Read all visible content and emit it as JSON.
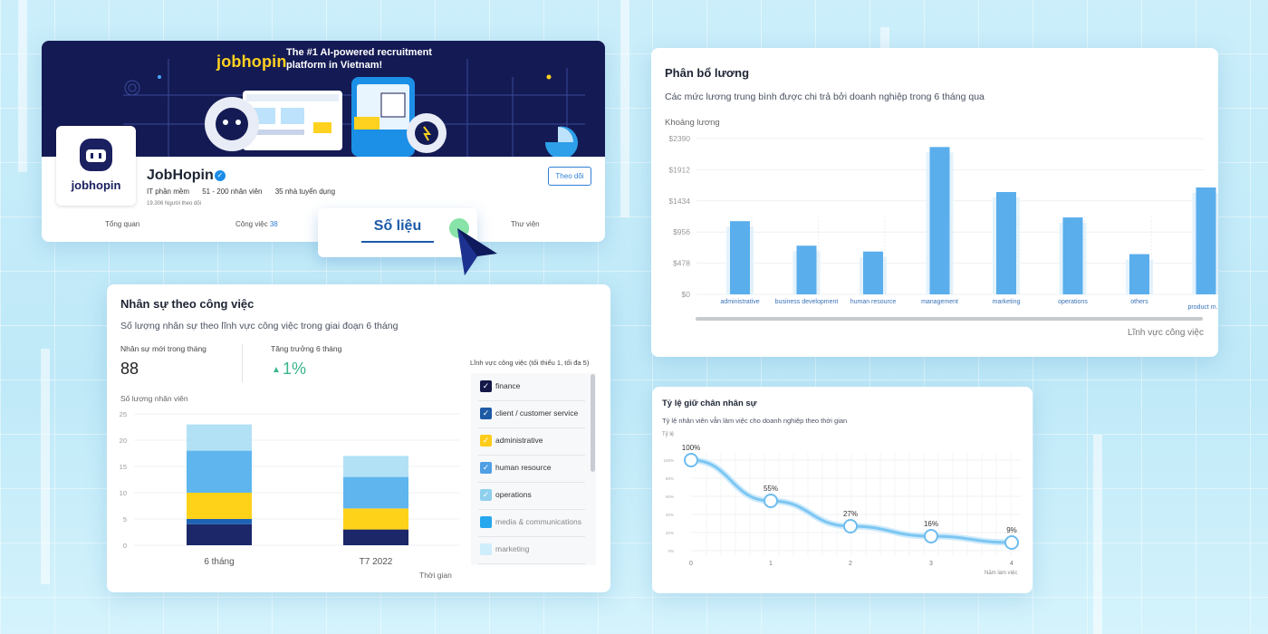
{
  "profile": {
    "banner_brand": "jobhopin",
    "banner_tagline": "The #1 AI-powered recruitment platform in Vietnam!",
    "logo_word": "jobhopin",
    "company_name": "JobHopin",
    "industry": "IT phần mềm",
    "size": "51 - 200 nhân viên",
    "recruiters": "35 nhà tuyển dụng",
    "followers": "19.306 Người theo dõi",
    "follow_label": "Theo dõi",
    "tabs": [
      {
        "label": "Tổng quan"
      },
      {
        "label": "Công việc",
        "count": "38"
      },
      {
        "label": "Số liệu"
      },
      {
        "label": "Thư viện"
      }
    ]
  },
  "staff": {
    "title": "Nhân sự theo công việc",
    "subtitle": "Số lượng nhân sự theo lĩnh vực công việc trong giai đoạn 6 tháng",
    "new_staff_label": "Nhân sự mới trong tháng",
    "new_staff_value": "88",
    "growth_label": "Tăng trưởng 6 tháng",
    "growth_value": "1%",
    "filter_title": "Lĩnh vực công việc (tối thiểu 1, tối đa 5)",
    "filters": [
      {
        "label": "finance",
        "checked": true,
        "color": "#14194a"
      },
      {
        "label": "client / customer service",
        "checked": true,
        "color": "#1d5aa6"
      },
      {
        "label": "administrative",
        "checked": true,
        "color": "#ffcc1a"
      },
      {
        "label": "human resource",
        "checked": true,
        "color": "#4e9fe4"
      },
      {
        "label": "operations",
        "checked": true,
        "color": "#8fd0ee"
      },
      {
        "label": "media & communications",
        "checked": false,
        "color": "#27a7ee"
      },
      {
        "label": "marketing",
        "checked": false,
        "color": "#cfeefb"
      }
    ]
  },
  "chart_data": [
    {
      "type": "bar",
      "title": "Số lượng nhân viên",
      "xlabel": "Thời gian",
      "ylabel": "Số lượng nhân viên",
      "ylim": [
        0,
        25
      ],
      "yticks": [
        "0",
        "5",
        "10",
        "15",
        "20",
        "25"
      ],
      "stacked": true,
      "categories": [
        "6 tháng",
        "T7 2022"
      ],
      "series": [
        {
          "color": "#1b2768",
          "values": [
            4,
            3
          ]
        },
        {
          "color": "#1d63b4",
          "values": [
            1,
            0
          ]
        },
        {
          "color": "#ffd21a",
          "values": [
            5,
            4
          ]
        },
        {
          "color": "#5fb6ef",
          "values": [
            8,
            6
          ]
        },
        {
          "color": "#a5dcf5",
          "values": [
            5,
            4
          ]
        }
      ]
    },
    {
      "type": "bar",
      "title": "Phân bổ lương",
      "subtitle": "Các mức lương trung bình được chi trả bởi doanh nghiệp trong 6 tháng qua",
      "ylabel": "Khoảng lương",
      "xlabel": "Lĩnh vực công việc",
      "ylim": [
        0,
        2390
      ],
      "yticks": [
        "$0",
        "$478",
        "$956",
        "$1434",
        "$1912",
        "$2390"
      ],
      "categories": [
        "administrative",
        "business development",
        "human resource",
        "management",
        "marketing",
        "operations",
        "others",
        "product m..."
      ],
      "values": [
        1123,
        747,
        657,
        2260,
        1570,
        1180,
        617,
        1640
      ]
    },
    {
      "type": "line",
      "title": "Tỷ lệ giữ chân nhân sự",
      "subtitle": "Tỷ lệ nhân viên vẫn làm việc cho doanh nghiệp theo thời gian",
      "ylabel": "Tỷ lệ",
      "xlabel": "Năm làm việc",
      "ylim": [
        0,
        100
      ],
      "yticks": [
        "0%",
        "20%",
        "40%",
        "60%",
        "80%",
        "100%"
      ],
      "x": [
        0,
        1,
        2,
        3,
        4
      ],
      "xticks": [
        "0",
        "1",
        "2",
        "3",
        "4"
      ],
      "values": [
        100,
        55,
        27,
        16,
        9
      ],
      "point_labels": [
        "100%",
        "55%",
        "27%",
        "16%",
        "9%"
      ]
    }
  ],
  "colors": {
    "accent": "#2f7fd6",
    "bar": "#5aaeec",
    "line": "#7cc6f2"
  }
}
